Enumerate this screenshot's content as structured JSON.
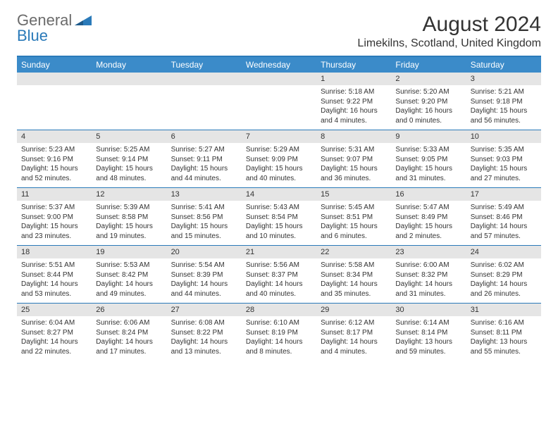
{
  "brand": {
    "part1": "General",
    "part2": "Blue",
    "color_gray": "#6b6b6b",
    "color_blue": "#2a7ab9"
  },
  "title": "August 2024",
  "location": "Limekilns, Scotland, United Kingdom",
  "colors": {
    "header_bg": "#3b8bc9",
    "header_fg": "#ffffff",
    "daynum_bg": "#e5e5e5",
    "rule": "#2a7ab9",
    "text": "#333333",
    "page_bg": "#ffffff"
  },
  "typography": {
    "title_fontsize": 30,
    "location_fontsize": 16,
    "dayheader_fontsize": 12,
    "daynum_fontsize": 11,
    "body_fontsize": 10
  },
  "day_labels": [
    "Sunday",
    "Monday",
    "Tuesday",
    "Wednesday",
    "Thursday",
    "Friday",
    "Saturday"
  ],
  "weeks": [
    [
      null,
      null,
      null,
      null,
      {
        "n": "1",
        "sr": "Sunrise: 5:18 AM",
        "ss": "Sunset: 9:22 PM",
        "dl": "Daylight: 16 hours and 4 minutes."
      },
      {
        "n": "2",
        "sr": "Sunrise: 5:20 AM",
        "ss": "Sunset: 9:20 PM",
        "dl": "Daylight: 16 hours and 0 minutes."
      },
      {
        "n": "3",
        "sr": "Sunrise: 5:21 AM",
        "ss": "Sunset: 9:18 PM",
        "dl": "Daylight: 15 hours and 56 minutes."
      }
    ],
    [
      {
        "n": "4",
        "sr": "Sunrise: 5:23 AM",
        "ss": "Sunset: 9:16 PM",
        "dl": "Daylight: 15 hours and 52 minutes."
      },
      {
        "n": "5",
        "sr": "Sunrise: 5:25 AM",
        "ss": "Sunset: 9:14 PM",
        "dl": "Daylight: 15 hours and 48 minutes."
      },
      {
        "n": "6",
        "sr": "Sunrise: 5:27 AM",
        "ss": "Sunset: 9:11 PM",
        "dl": "Daylight: 15 hours and 44 minutes."
      },
      {
        "n": "7",
        "sr": "Sunrise: 5:29 AM",
        "ss": "Sunset: 9:09 PM",
        "dl": "Daylight: 15 hours and 40 minutes."
      },
      {
        "n": "8",
        "sr": "Sunrise: 5:31 AM",
        "ss": "Sunset: 9:07 PM",
        "dl": "Daylight: 15 hours and 36 minutes."
      },
      {
        "n": "9",
        "sr": "Sunrise: 5:33 AM",
        "ss": "Sunset: 9:05 PM",
        "dl": "Daylight: 15 hours and 31 minutes."
      },
      {
        "n": "10",
        "sr": "Sunrise: 5:35 AM",
        "ss": "Sunset: 9:03 PM",
        "dl": "Daylight: 15 hours and 27 minutes."
      }
    ],
    [
      {
        "n": "11",
        "sr": "Sunrise: 5:37 AM",
        "ss": "Sunset: 9:00 PM",
        "dl": "Daylight: 15 hours and 23 minutes."
      },
      {
        "n": "12",
        "sr": "Sunrise: 5:39 AM",
        "ss": "Sunset: 8:58 PM",
        "dl": "Daylight: 15 hours and 19 minutes."
      },
      {
        "n": "13",
        "sr": "Sunrise: 5:41 AM",
        "ss": "Sunset: 8:56 PM",
        "dl": "Daylight: 15 hours and 15 minutes."
      },
      {
        "n": "14",
        "sr": "Sunrise: 5:43 AM",
        "ss": "Sunset: 8:54 PM",
        "dl": "Daylight: 15 hours and 10 minutes."
      },
      {
        "n": "15",
        "sr": "Sunrise: 5:45 AM",
        "ss": "Sunset: 8:51 PM",
        "dl": "Daylight: 15 hours and 6 minutes."
      },
      {
        "n": "16",
        "sr": "Sunrise: 5:47 AM",
        "ss": "Sunset: 8:49 PM",
        "dl": "Daylight: 15 hours and 2 minutes."
      },
      {
        "n": "17",
        "sr": "Sunrise: 5:49 AM",
        "ss": "Sunset: 8:46 PM",
        "dl": "Daylight: 14 hours and 57 minutes."
      }
    ],
    [
      {
        "n": "18",
        "sr": "Sunrise: 5:51 AM",
        "ss": "Sunset: 8:44 PM",
        "dl": "Daylight: 14 hours and 53 minutes."
      },
      {
        "n": "19",
        "sr": "Sunrise: 5:53 AM",
        "ss": "Sunset: 8:42 PM",
        "dl": "Daylight: 14 hours and 49 minutes."
      },
      {
        "n": "20",
        "sr": "Sunrise: 5:54 AM",
        "ss": "Sunset: 8:39 PM",
        "dl": "Daylight: 14 hours and 44 minutes."
      },
      {
        "n": "21",
        "sr": "Sunrise: 5:56 AM",
        "ss": "Sunset: 8:37 PM",
        "dl": "Daylight: 14 hours and 40 minutes."
      },
      {
        "n": "22",
        "sr": "Sunrise: 5:58 AM",
        "ss": "Sunset: 8:34 PM",
        "dl": "Daylight: 14 hours and 35 minutes."
      },
      {
        "n": "23",
        "sr": "Sunrise: 6:00 AM",
        "ss": "Sunset: 8:32 PM",
        "dl": "Daylight: 14 hours and 31 minutes."
      },
      {
        "n": "24",
        "sr": "Sunrise: 6:02 AM",
        "ss": "Sunset: 8:29 PM",
        "dl": "Daylight: 14 hours and 26 minutes."
      }
    ],
    [
      {
        "n": "25",
        "sr": "Sunrise: 6:04 AM",
        "ss": "Sunset: 8:27 PM",
        "dl": "Daylight: 14 hours and 22 minutes."
      },
      {
        "n": "26",
        "sr": "Sunrise: 6:06 AM",
        "ss": "Sunset: 8:24 PM",
        "dl": "Daylight: 14 hours and 17 minutes."
      },
      {
        "n": "27",
        "sr": "Sunrise: 6:08 AM",
        "ss": "Sunset: 8:22 PM",
        "dl": "Daylight: 14 hours and 13 minutes."
      },
      {
        "n": "28",
        "sr": "Sunrise: 6:10 AM",
        "ss": "Sunset: 8:19 PM",
        "dl": "Daylight: 14 hours and 8 minutes."
      },
      {
        "n": "29",
        "sr": "Sunrise: 6:12 AM",
        "ss": "Sunset: 8:17 PM",
        "dl": "Daylight: 14 hours and 4 minutes."
      },
      {
        "n": "30",
        "sr": "Sunrise: 6:14 AM",
        "ss": "Sunset: 8:14 PM",
        "dl": "Daylight: 13 hours and 59 minutes."
      },
      {
        "n": "31",
        "sr": "Sunrise: 6:16 AM",
        "ss": "Sunset: 8:11 PM",
        "dl": "Daylight: 13 hours and 55 minutes."
      }
    ]
  ]
}
